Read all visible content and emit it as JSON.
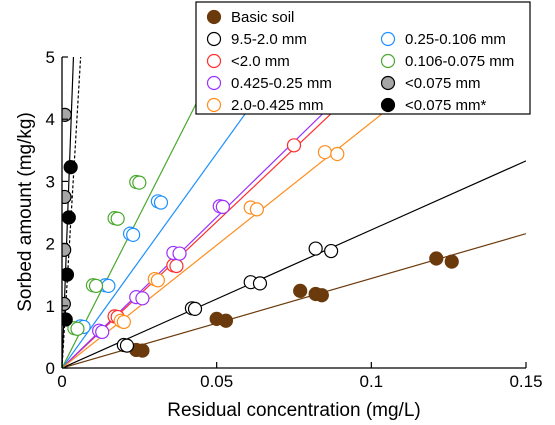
{
  "chart_data": {
    "type": "scatter",
    "xlabel": "Residual concentration (mg/L)",
    "ylabel": "Sorbed amount (mg/kg)",
    "xlim": [
      0,
      0.15
    ],
    "ylim": [
      0,
      5
    ],
    "xticks": [
      0,
      0.05,
      0.1,
      0.15
    ],
    "xtick_labels": [
      "0",
      "0.05",
      "0.1",
      "0.15"
    ],
    "yticks": [
      0,
      1,
      2,
      3,
      4,
      5
    ],
    "ytick_labels": [
      "0",
      "1",
      "2",
      "3",
      "4",
      "5"
    ],
    "grid": false,
    "legend_position": "top-right",
    "series": [
      {
        "name": "Basic soil",
        "color": "#6b3a0c",
        "fill": "#6b3a0c",
        "fit_slope": 14.4,
        "points": [
          [
            0.024,
            0.29
          ],
          [
            0.026,
            0.28
          ],
          [
            0.05,
            0.79
          ],
          [
            0.053,
            0.76
          ],
          [
            0.077,
            1.24
          ],
          [
            0.082,
            1.19
          ],
          [
            0.084,
            1.17
          ],
          [
            0.121,
            1.76
          ],
          [
            0.126,
            1.71
          ]
        ]
      },
      {
        "name": "9.5-2.0 mm",
        "color": "#000000",
        "fill": "#ffffff",
        "fit_slope": 22.2,
        "points": [
          [
            0.02,
            0.37
          ],
          [
            0.021,
            0.36
          ],
          [
            0.042,
            0.96
          ],
          [
            0.043,
            0.95
          ],
          [
            0.061,
            1.38
          ],
          [
            0.064,
            1.36
          ],
          [
            0.082,
            1.92
          ],
          [
            0.087,
            1.88
          ]
        ]
      },
      {
        "name": "<2.0 mm",
        "color": "#ff2d2d",
        "fill": "#ffffff",
        "fit_slope": 47.0,
        "points": [
          [
            0.017,
            0.83
          ],
          [
            0.018,
            0.82
          ],
          [
            0.036,
            1.65
          ],
          [
            0.037,
            1.64
          ],
          [
            0.075,
            3.58
          ]
        ]
      },
      {
        "name": "0.425-0.25 mm",
        "color": "#9b30ff",
        "fill": "#ffffff",
        "fit_slope": 48.5,
        "points": [
          [
            0.012,
            0.6
          ],
          [
            0.013,
            0.58
          ],
          [
            0.024,
            1.14
          ],
          [
            0.026,
            1.12
          ],
          [
            0.036,
            1.85
          ],
          [
            0.038,
            1.84
          ],
          [
            0.051,
            2.6
          ],
          [
            0.052,
            2.59
          ]
        ]
      },
      {
        "name": "2.0-0.425 mm",
        "color": "#ff8c1a",
        "fill": "#ffffff",
        "fit_slope": 39.5,
        "points": [
          [
            0.019,
            0.76
          ],
          [
            0.02,
            0.74
          ],
          [
            0.03,
            1.43
          ],
          [
            0.031,
            1.41
          ],
          [
            0.061,
            2.58
          ],
          [
            0.063,
            2.55
          ],
          [
            0.085,
            3.47
          ],
          [
            0.089,
            3.44
          ]
        ]
      },
      {
        "name": "0.25-0.106 mm",
        "color": "#1e90ff",
        "fill": "#ffffff",
        "fit_slope": 69.0,
        "points": [
          [
            0.006,
            0.67
          ],
          [
            0.007,
            0.66
          ],
          [
            0.014,
            1.33
          ],
          [
            0.015,
            1.32
          ],
          [
            0.022,
            2.16
          ],
          [
            0.023,
            2.14
          ],
          [
            0.031,
            2.68
          ],
          [
            0.032,
            2.66
          ]
        ]
      },
      {
        "name": "0.106-0.075 mm",
        "color": "#49a82d",
        "fill": "#ffffff",
        "fit_slope": 98.0,
        "points": [
          [
            0.004,
            0.64
          ],
          [
            0.005,
            0.63
          ],
          [
            0.01,
            1.33
          ],
          [
            0.011,
            1.32
          ],
          [
            0.017,
            2.41
          ],
          [
            0.018,
            2.4
          ],
          [
            0.024,
            2.99
          ],
          [
            0.025,
            2.98
          ]
        ]
      },
      {
        "name": "<0.075 mm",
        "color": "#000000",
        "fill": "#a6a6a6",
        "fit_slope": 1350.0,
        "points": [
          [
            0.0006,
            1.03
          ],
          [
            0.0007,
            1.9
          ],
          [
            0.0008,
            2.75
          ],
          [
            0.0009,
            4.07
          ]
        ]
      },
      {
        "name": "<0.075 mm*",
        "color": "#000000",
        "fill": "#000000",
        "fit_slope": 830.0,
        "points": [
          [
            0.0012,
            0.78
          ],
          [
            0.0016,
            1.5
          ],
          [
            0.0022,
            2.42
          ],
          [
            0.0028,
            3.23
          ]
        ]
      }
    ]
  }
}
